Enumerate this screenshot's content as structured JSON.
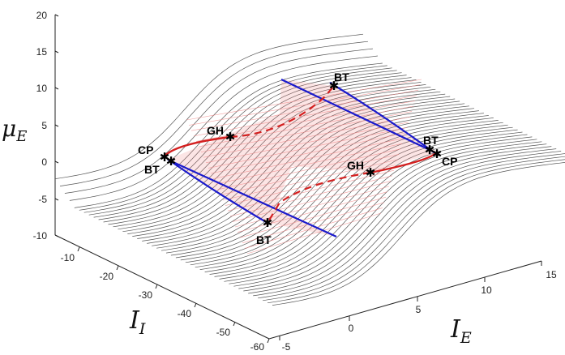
{
  "chart_data": {
    "type": "surface-3d",
    "title": "",
    "axes": {
      "z": {
        "label": "μ",
        "sub": "E",
        "ticks": [
          "20",
          "15",
          "10",
          "5",
          "0",
          "-5",
          "-10"
        ],
        "range": [
          -10,
          20
        ]
      },
      "y": {
        "label": "I",
        "sub": "I",
        "ticks": [
          "-10",
          "-20",
          "-30",
          "-40",
          "-50",
          "-60"
        ],
        "range": [
          -60,
          -5
        ]
      },
      "x": {
        "label": "I",
        "sub": "E",
        "ticks": [
          "-5",
          "0",
          "5",
          "10",
          "15"
        ],
        "range": [
          -5,
          17
        ]
      }
    },
    "surface_color": "#555555",
    "region_color": "#f08a8a",
    "fold_curve_color": "#1a1acc",
    "hopf_curve_color": "#d42020",
    "points": [
      {
        "label": "BT",
        "I_E": 6.5,
        "I_I": -10,
        "mu_E": 8.5
      },
      {
        "label": "BT",
        "I_E": 13.5,
        "I_I": -32,
        "mu_E": 4.2
      },
      {
        "label": "CP",
        "I_E": 13.8,
        "I_I": -34,
        "mu_E": 3.8
      },
      {
        "label": "GH",
        "I_E": 10.5,
        "I_I": -45,
        "mu_E": 0.8
      },
      {
        "label": "CP",
        "I_E": -2.5,
        "I_I": -15,
        "mu_E": 0.5
      },
      {
        "label": "BT",
        "I_E": -2.0,
        "I_I": -16,
        "mu_E": 0.0
      },
      {
        "label": "GH",
        "I_E": 0.5,
        "I_I": -18,
        "mu_E": 3.5
      },
      {
        "label": "BT",
        "I_E": 1.0,
        "I_I": -42,
        "mu_E": -8.0
      }
    ]
  }
}
